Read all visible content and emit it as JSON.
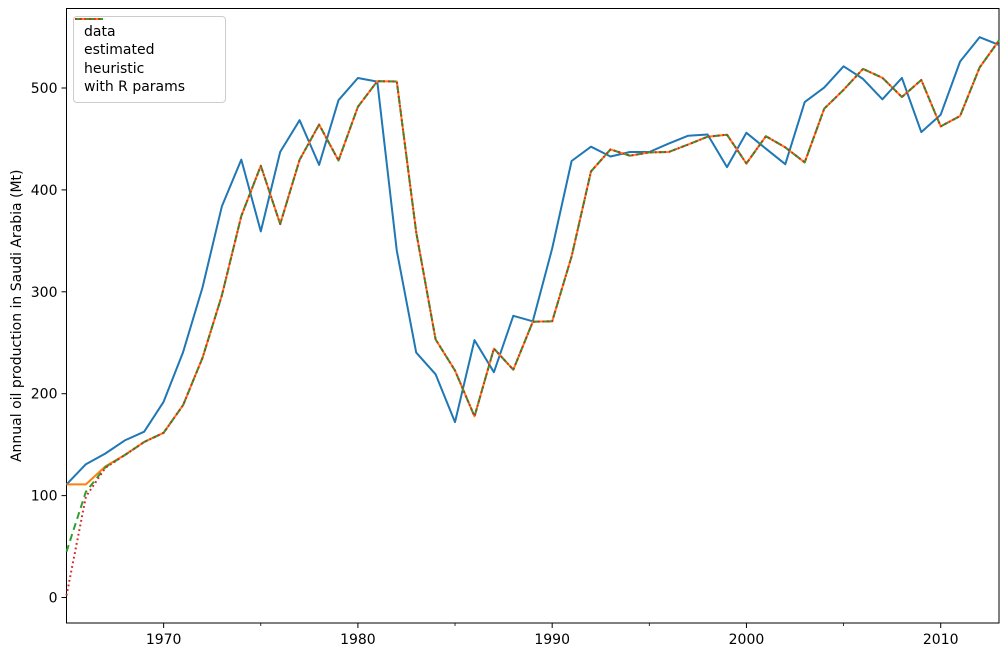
{
  "figure": {
    "xticks": [
      1970,
      1980,
      1990,
      2000,
      2010
    ],
    "xtick_labels": [
      "1970",
      "1980",
      "1990",
      "2000",
      "2010"
    ],
    "xminorticks": [
      1975,
      1985,
      1995,
      2005
    ],
    "yticks": [
      0,
      100,
      200,
      300,
      400,
      500
    ],
    "ytick_labels": [
      "0",
      "100",
      "200",
      "300",
      "400",
      "500"
    ]
  },
  "chart_data": {
    "type": "line",
    "title": "",
    "xlabel": "",
    "ylabel": "Annual oil production in Saudi Arabia (Mt)",
    "xlim": [
      1965,
      2013
    ],
    "ylim": [
      -25,
      578
    ],
    "grid": false,
    "legend_position": "upper left",
    "x": [
      1965,
      1966,
      1967,
      1968,
      1969,
      1970,
      1971,
      1972,
      1973,
      1974,
      1975,
      1976,
      1977,
      1978,
      1979,
      1980,
      1981,
      1982,
      1983,
      1984,
      1985,
      1986,
      1987,
      1988,
      1989,
      1990,
      1991,
      1992,
      1993,
      1994,
      1995,
      1996,
      1997,
      1998,
      1999,
      2000,
      2001,
      2002,
      2003,
      2004,
      2005,
      2006,
      2007,
      2008,
      2009,
      2010,
      2011,
      2012,
      2013
    ],
    "series": [
      {
        "name": "data",
        "color": "#1f77b4",
        "line_style": "solid",
        "dash": "",
        "values": [
          111.0,
          130.8,
          141.3,
          154.2,
          162.7,
          192.1,
          240.8,
          304.2,
          384.0,
          429.7,
          359.3,
          437.3,
          468.4,
          424.5,
          488.0,
          509.8,
          506.3,
          340.2,
          240.3,
          219.0,
          172.1,
          252.6,
          221.1,
          276.5,
          271.1,
          342.6,
          428.4,
          442.4,
          432.8,
          437.2,
          437.2,
          445.4,
          453.2,
          454.4,
          422.4,
          456.0,
          440.4,
          425.2,
          486.2,
          500.4,
          521.3,
          508.9,
          488.9,
          509.9,
          456.7,
          473.8,
          526.0,
          549.8,
          542.3
        ]
      },
      {
        "name": "estimated",
        "color": "#ff7f0e",
        "line_style": "solid",
        "dash": "",
        "values": [
          111.0,
          111.0,
          128.7,
          139.9,
          152.7,
          161.6,
          188.8,
          235.1,
          296.6,
          374.4,
          423.6,
          366.4,
          429.5,
          464.1,
          428.8,
          481.5,
          506.7,
          506.4,
          358.5,
          253.3,
          222.8,
          177.7,
          244.3,
          223.6,
          270.7,
          271.1,
          334.7,
          418.1,
          439.7,
          433.6,
          436.8,
          437.2,
          444.5,
          452.2,
          454.2,
          425.9,
          452.7,
          441.7,
          427.0,
          479.7,
          498.2,
          518.7,
          510.0,
          491.2,
          507.8,
          462.3,
          472.5,
          520.1,
          546.6
        ]
      },
      {
        "name": "heuristic",
        "color": "#2ca02c",
        "line_style": "dashed",
        "dash": "7 4.5",
        "values": [
          45.0,
          103.8,
          127.9,
          139.8,
          152.6,
          161.6,
          188.8,
          235.1,
          296.6,
          374.4,
          423.6,
          366.4,
          429.5,
          464.1,
          428.8,
          481.5,
          506.7,
          506.4,
          358.5,
          253.3,
          222.8,
          177.7,
          244.3,
          223.6,
          270.7,
          271.1,
          334.7,
          418.1,
          439.7,
          433.6,
          436.8,
          437.2,
          444.5,
          452.2,
          454.2,
          425.9,
          452.7,
          441.7,
          427.0,
          479.7,
          498.2,
          518.7,
          510.0,
          491.2,
          507.8,
          462.3,
          472.5,
          520.1,
          546.6
        ]
      },
      {
        "name": "with R params",
        "color": "#d62728",
        "line_style": "dotted",
        "dash": "1.8 2.9",
        "values": [
          2.0,
          99.0,
          127.3,
          139.8,
          152.6,
          161.6,
          188.8,
          235.1,
          296.6,
          374.4,
          423.6,
          366.4,
          429.5,
          464.1,
          428.8,
          481.5,
          506.7,
          506.4,
          358.5,
          253.3,
          222.8,
          177.7,
          244.3,
          223.6,
          270.7,
          271.1,
          334.7,
          418.1,
          439.7,
          433.6,
          436.8,
          437.2,
          444.5,
          452.2,
          454.2,
          425.9,
          452.7,
          441.7,
          427.0,
          479.7,
          498.2,
          518.7,
          510.0,
          491.2,
          507.8,
          462.3,
          472.5,
          520.1,
          546.6
        ]
      }
    ]
  }
}
